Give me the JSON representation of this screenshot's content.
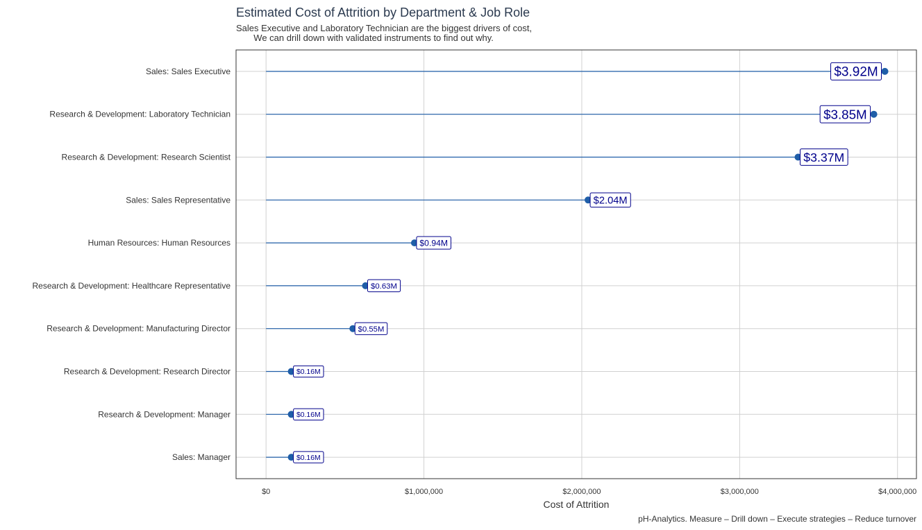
{
  "title": "Estimated Cost of Attrition by Department & Job Role",
  "subtitle": "Sales Executive and Laboratory Technician are the biggest drivers of cost,\n       We can drill down with validated instruments to find out why.",
  "caption": "pH-Analytics. Measure – Drill down – Execute strategies – Reduce turnover",
  "chart_data": {
    "type": "lollipop",
    "xlabel": "Cost of Attrition",
    "ylabel": "",
    "xlim": [
      -190000,
      4120000
    ],
    "xticks": [
      0,
      1000000,
      2000000,
      3000000,
      4000000
    ],
    "xtick_labels": [
      "$0",
      "$1,000,000",
      "$2,000,000",
      "$3,000,000",
      "$4,000,000"
    ],
    "grid": true,
    "colors": {
      "segment": "#1f5ea8",
      "point": "#1f5ea8",
      "label_text": "#00008b",
      "label_border": "#00008b"
    },
    "categories": [
      "Sales: Sales Executive",
      "Research & Development: Laboratory Technician",
      "Research & Development: Research Scientist",
      "Sales: Sales Representative",
      "Human Resources: Human Resources",
      "Research & Development: Healthcare Representative",
      "Research & Development: Manufacturing Director",
      "Research & Development: Research Director",
      "Research & Development: Manager",
      "Sales: Manager"
    ],
    "values": [
      3920000,
      3850000,
      3370000,
      2040000,
      940000,
      630000,
      550000,
      160000,
      160000,
      160000
    ],
    "labels": [
      "$3.92M",
      "$3.85M",
      "$3.37M",
      "$2.04M",
      "$0.94M",
      "$0.63M",
      "$0.55M",
      "$0.16M",
      "$0.16M",
      "$0.16M"
    ]
  }
}
